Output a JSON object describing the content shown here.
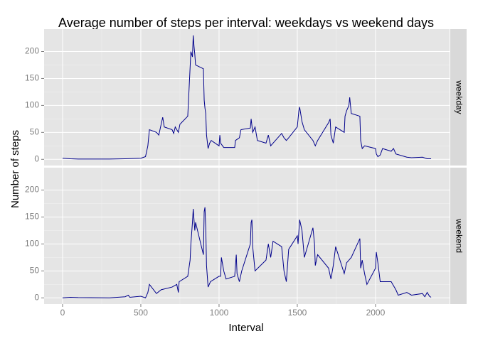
{
  "chart_data": {
    "type": "line",
    "title": "Average number of steps per interval: weekdays vs weekend days",
    "x_label": "Interval",
    "y_label": "Number of steps",
    "xlim": [
      -118,
      2473
    ],
    "xticks": [
      0,
      500,
      1000,
      1500,
      2000
    ],
    "ylim": [
      -11.5,
      241.5
    ],
    "yticks": [
      0,
      50,
      100,
      150,
      200
    ],
    "grid": true,
    "series": [
      {
        "name": "weekday",
        "color": "#00008b",
        "x": [
          0,
          50,
          100,
          200,
          300,
          400,
          500,
          530,
          545,
          555,
          600,
          615,
          630,
          640,
          650,
          700,
          710,
          720,
          730,
          740,
          750,
          800,
          815,
          820,
          830,
          835,
          840,
          845,
          850,
          900,
          905,
          910,
          915,
          920,
          930,
          940,
          950,
          1000,
          1005,
          1010,
          1030,
          1100,
          1105,
          1130,
          1140,
          1200,
          1205,
          1215,
          1230,
          1245,
          1300,
          1315,
          1330,
          1400,
          1415,
          1430,
          1445,
          1500,
          1510,
          1515,
          1530,
          1545,
          1600,
          1615,
          1630,
          1700,
          1710,
          1715,
          1730,
          1745,
          1800,
          1805,
          1815,
          1830,
          1835,
          1845,
          1900,
          1905,
          1915,
          1930,
          2000,
          2005,
          2015,
          2030,
          2045,
          2100,
          2115,
          2130,
          2200,
          2230,
          2300,
          2330,
          2355
        ],
        "values": [
          2,
          1,
          0.5,
          0.5,
          0.5,
          1,
          2,
          5,
          25,
          55,
          50,
          45,
          65,
          78,
          60,
          55,
          48,
          60,
          55,
          50,
          65,
          80,
          170,
          200,
          190,
          230,
          210,
          195,
          175,
          168,
          110,
          95,
          85,
          45,
          20,
          30,
          35,
          25,
          45,
          30,
          22,
          22,
          35,
          40,
          55,
          58,
          75,
          50,
          60,
          35,
          30,
          45,
          25,
          48,
          40,
          35,
          40,
          60,
          90,
          97,
          70,
          55,
          35,
          25,
          35,
          68,
          75,
          45,
          30,
          60,
          50,
          80,
          90,
          100,
          115,
          85,
          80,
          35,
          20,
          25,
          20,
          10,
          5,
          8,
          20,
          15,
          20,
          10,
          4,
          3,
          4,
          1,
          1
        ]
      },
      {
        "name": "weekend",
        "color": "#00008b",
        "x": [
          0,
          50,
          100,
          300,
          400,
          420,
          430,
          500,
          530,
          545,
          555,
          600,
          630,
          700,
          730,
          740,
          745,
          800,
          815,
          820,
          830,
          835,
          845,
          850,
          900,
          905,
          910,
          915,
          920,
          930,
          945,
          1000,
          1010,
          1015,
          1030,
          1045,
          1100,
          1110,
          1115,
          1130,
          1145,
          1200,
          1205,
          1210,
          1215,
          1230,
          1300,
          1315,
          1330,
          1345,
          1400,
          1415,
          1430,
          1445,
          1500,
          1505,
          1515,
          1530,
          1545,
          1600,
          1610,
          1615,
          1630,
          1700,
          1715,
          1730,
          1745,
          1800,
          1815,
          1830,
          1845,
          1900,
          1905,
          1915,
          1930,
          1945,
          2000,
          2005,
          2015,
          2030,
          2100,
          2130,
          2145,
          2200,
          2230,
          2300,
          2315,
          2330,
          2345,
          2355
        ],
        "values": [
          0,
          1,
          0.5,
          0,
          2,
          5,
          1,
          3,
          0,
          10,
          25,
          8,
          15,
          20,
          25,
          10,
          30,
          40,
          70,
          100,
          140,
          165,
          125,
          140,
          80,
          160,
          168,
          130,
          60,
          20,
          30,
          40,
          40,
          75,
          50,
          35,
          40,
          80,
          45,
          30,
          50,
          100,
          140,
          145,
          95,
          50,
          70,
          100,
          75,
          105,
          95,
          50,
          30,
          90,
          115,
          100,
          145,
          125,
          75,
          130,
          100,
          60,
          80,
          55,
          35,
          60,
          95,
          45,
          65,
          70,
          75,
          110,
          55,
          70,
          45,
          25,
          55,
          85,
          65,
          30,
          30,
          15,
          5,
          10,
          5,
          8,
          2,
          10,
          3,
          1
        ]
      }
    ]
  }
}
